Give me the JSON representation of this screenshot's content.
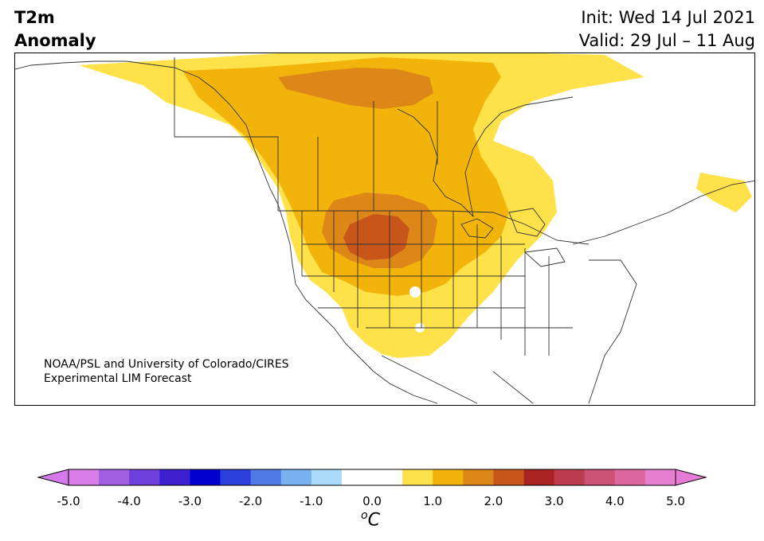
{
  "header": {
    "title_line1": "T2m",
    "title_line2": "Anomaly",
    "init": "Init: Wed 14 Jul 2021",
    "valid": "Valid: 29 Jul – 11 Aug"
  },
  "credit": {
    "line1": "NOAA/PSL and University of Colorado/CIRES",
    "line2": "Experimental LIM Forecast"
  },
  "colorbar": {
    "min": -5.0,
    "max": 5.0,
    "step": 0.5,
    "extend": "both",
    "ticks": [
      "-5.0",
      "-4.0",
      "-3.0",
      "-2.0",
      "-1.0",
      "0.0",
      "1.0",
      "2.0",
      "3.0",
      "4.0",
      "5.0"
    ],
    "colors": [
      "#d77ee8",
      "#a35de3",
      "#6f3fd9",
      "#3e1fd0",
      "#0000cf",
      "#2b3fdc",
      "#4f7ae6",
      "#76b2ef",
      "#a9dbfa",
      "#ffffff",
      "#ffffff",
      "#ffe24a",
      "#f2b40a",
      "#dd8718",
      "#c8561b",
      "#aa2222",
      "#bd3b4e",
      "#cc5276",
      "#db679e",
      "#e77fd1"
    ],
    "under_color": "#d57ae8",
    "over_color": "#e87ad8",
    "units": "C",
    "units_prefix": "o"
  },
  "map": {
    "region": "North America",
    "variable": "2m temperature anomaly",
    "anomaly_max_degC": 2.5,
    "max_anomaly_location": "northern Rockies (Montana/Wyoming)"
  }
}
